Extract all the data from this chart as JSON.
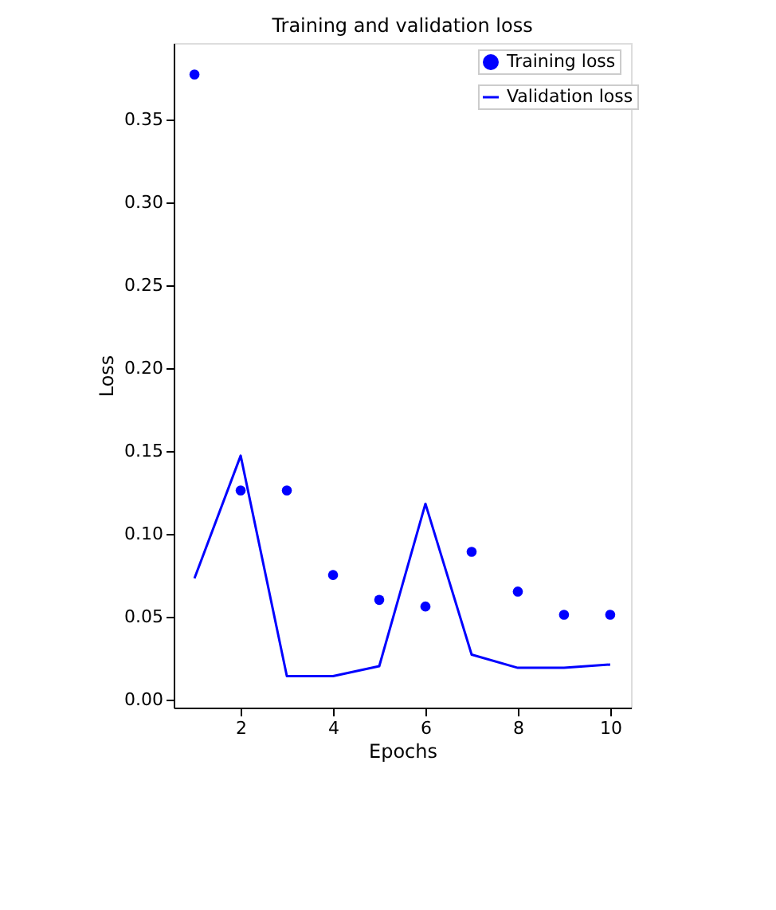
{
  "chart_data": {
    "type": "scatter",
    "title": "Training and validation loss",
    "xlabel": "Epochs",
    "ylabel": "Loss",
    "x": [
      1,
      2,
      3,
      4,
      5,
      6,
      7,
      8,
      9,
      10
    ],
    "series": [
      {
        "name": "Training loss",
        "color": "#0000ff",
        "marker": "circle",
        "values": [
          0.377,
          0.126,
          0.126,
          0.075,
          0.06,
          0.056,
          0.089,
          0.065,
          0.051,
          0.051
        ]
      },
      {
        "name": "Validation loss",
        "type": "line",
        "color": "#0000ff",
        "marker": "none",
        "line_style": "solid",
        "values": [
          0.073,
          0.147,
          0.014,
          0.014,
          0.02,
          0.118,
          0.027,
          0.019,
          0.019,
          0.021
        ]
      }
    ],
    "xlim": [
      0.55,
      10.45
    ],
    "xticks": [
      2,
      4,
      6,
      8,
      10
    ],
    "ylim": [
      -0.005,
      0.396
    ],
    "yticks": [
      {
        "value": 0,
        "label": "0.00"
      },
      {
        "value": 0.05,
        "label": "0.05"
      },
      {
        "value": 0.1,
        "label": "0.10"
      },
      {
        "value": 0.15,
        "label": "0.15"
      },
      {
        "value": 0.2,
        "label": "0.20"
      },
      {
        "value": 0.25,
        "label": "0.25"
      },
      {
        "value": 0.3,
        "label": "0.30"
      },
      {
        "value": 0.35,
        "label": "0.35"
      }
    ],
    "grid": false,
    "legend": "top right"
  }
}
